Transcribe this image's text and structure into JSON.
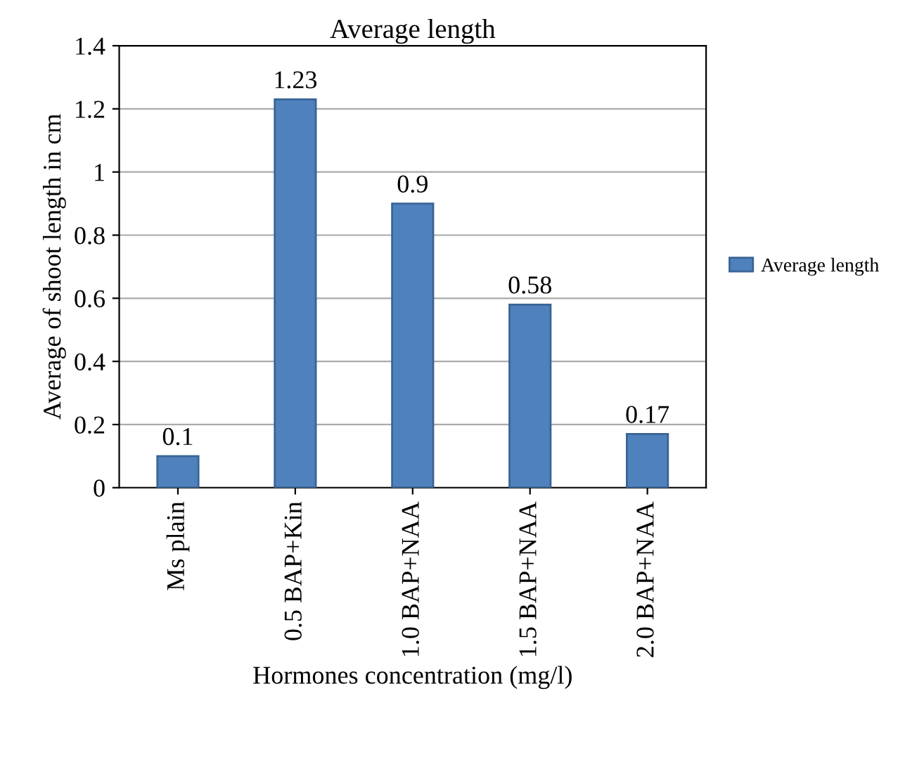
{
  "chart_data": {
    "type": "bar",
    "title": "Average length",
    "xlabel": "Hormones concentration (mg/l)",
    "ylabel": "Average of shoot length in cm",
    "categories": [
      "Ms plain",
      "0.5 BAP+Kin",
      "1.0 BAP+NAA",
      "1.5 BAP+NAA",
      "2.0 BAP+NAA"
    ],
    "series": [
      {
        "name": "Average length",
        "color": "#4f81bd",
        "values": [
          0.1,
          1.23,
          0.9,
          0.58,
          0.17
        ]
      }
    ],
    "ylim": [
      0,
      1.4
    ],
    "yticks": [
      0,
      0.2,
      0.4,
      0.6,
      0.8,
      1,
      1.2,
      1.4
    ],
    "grid": "y",
    "legend": "right",
    "data_labels": true
  }
}
